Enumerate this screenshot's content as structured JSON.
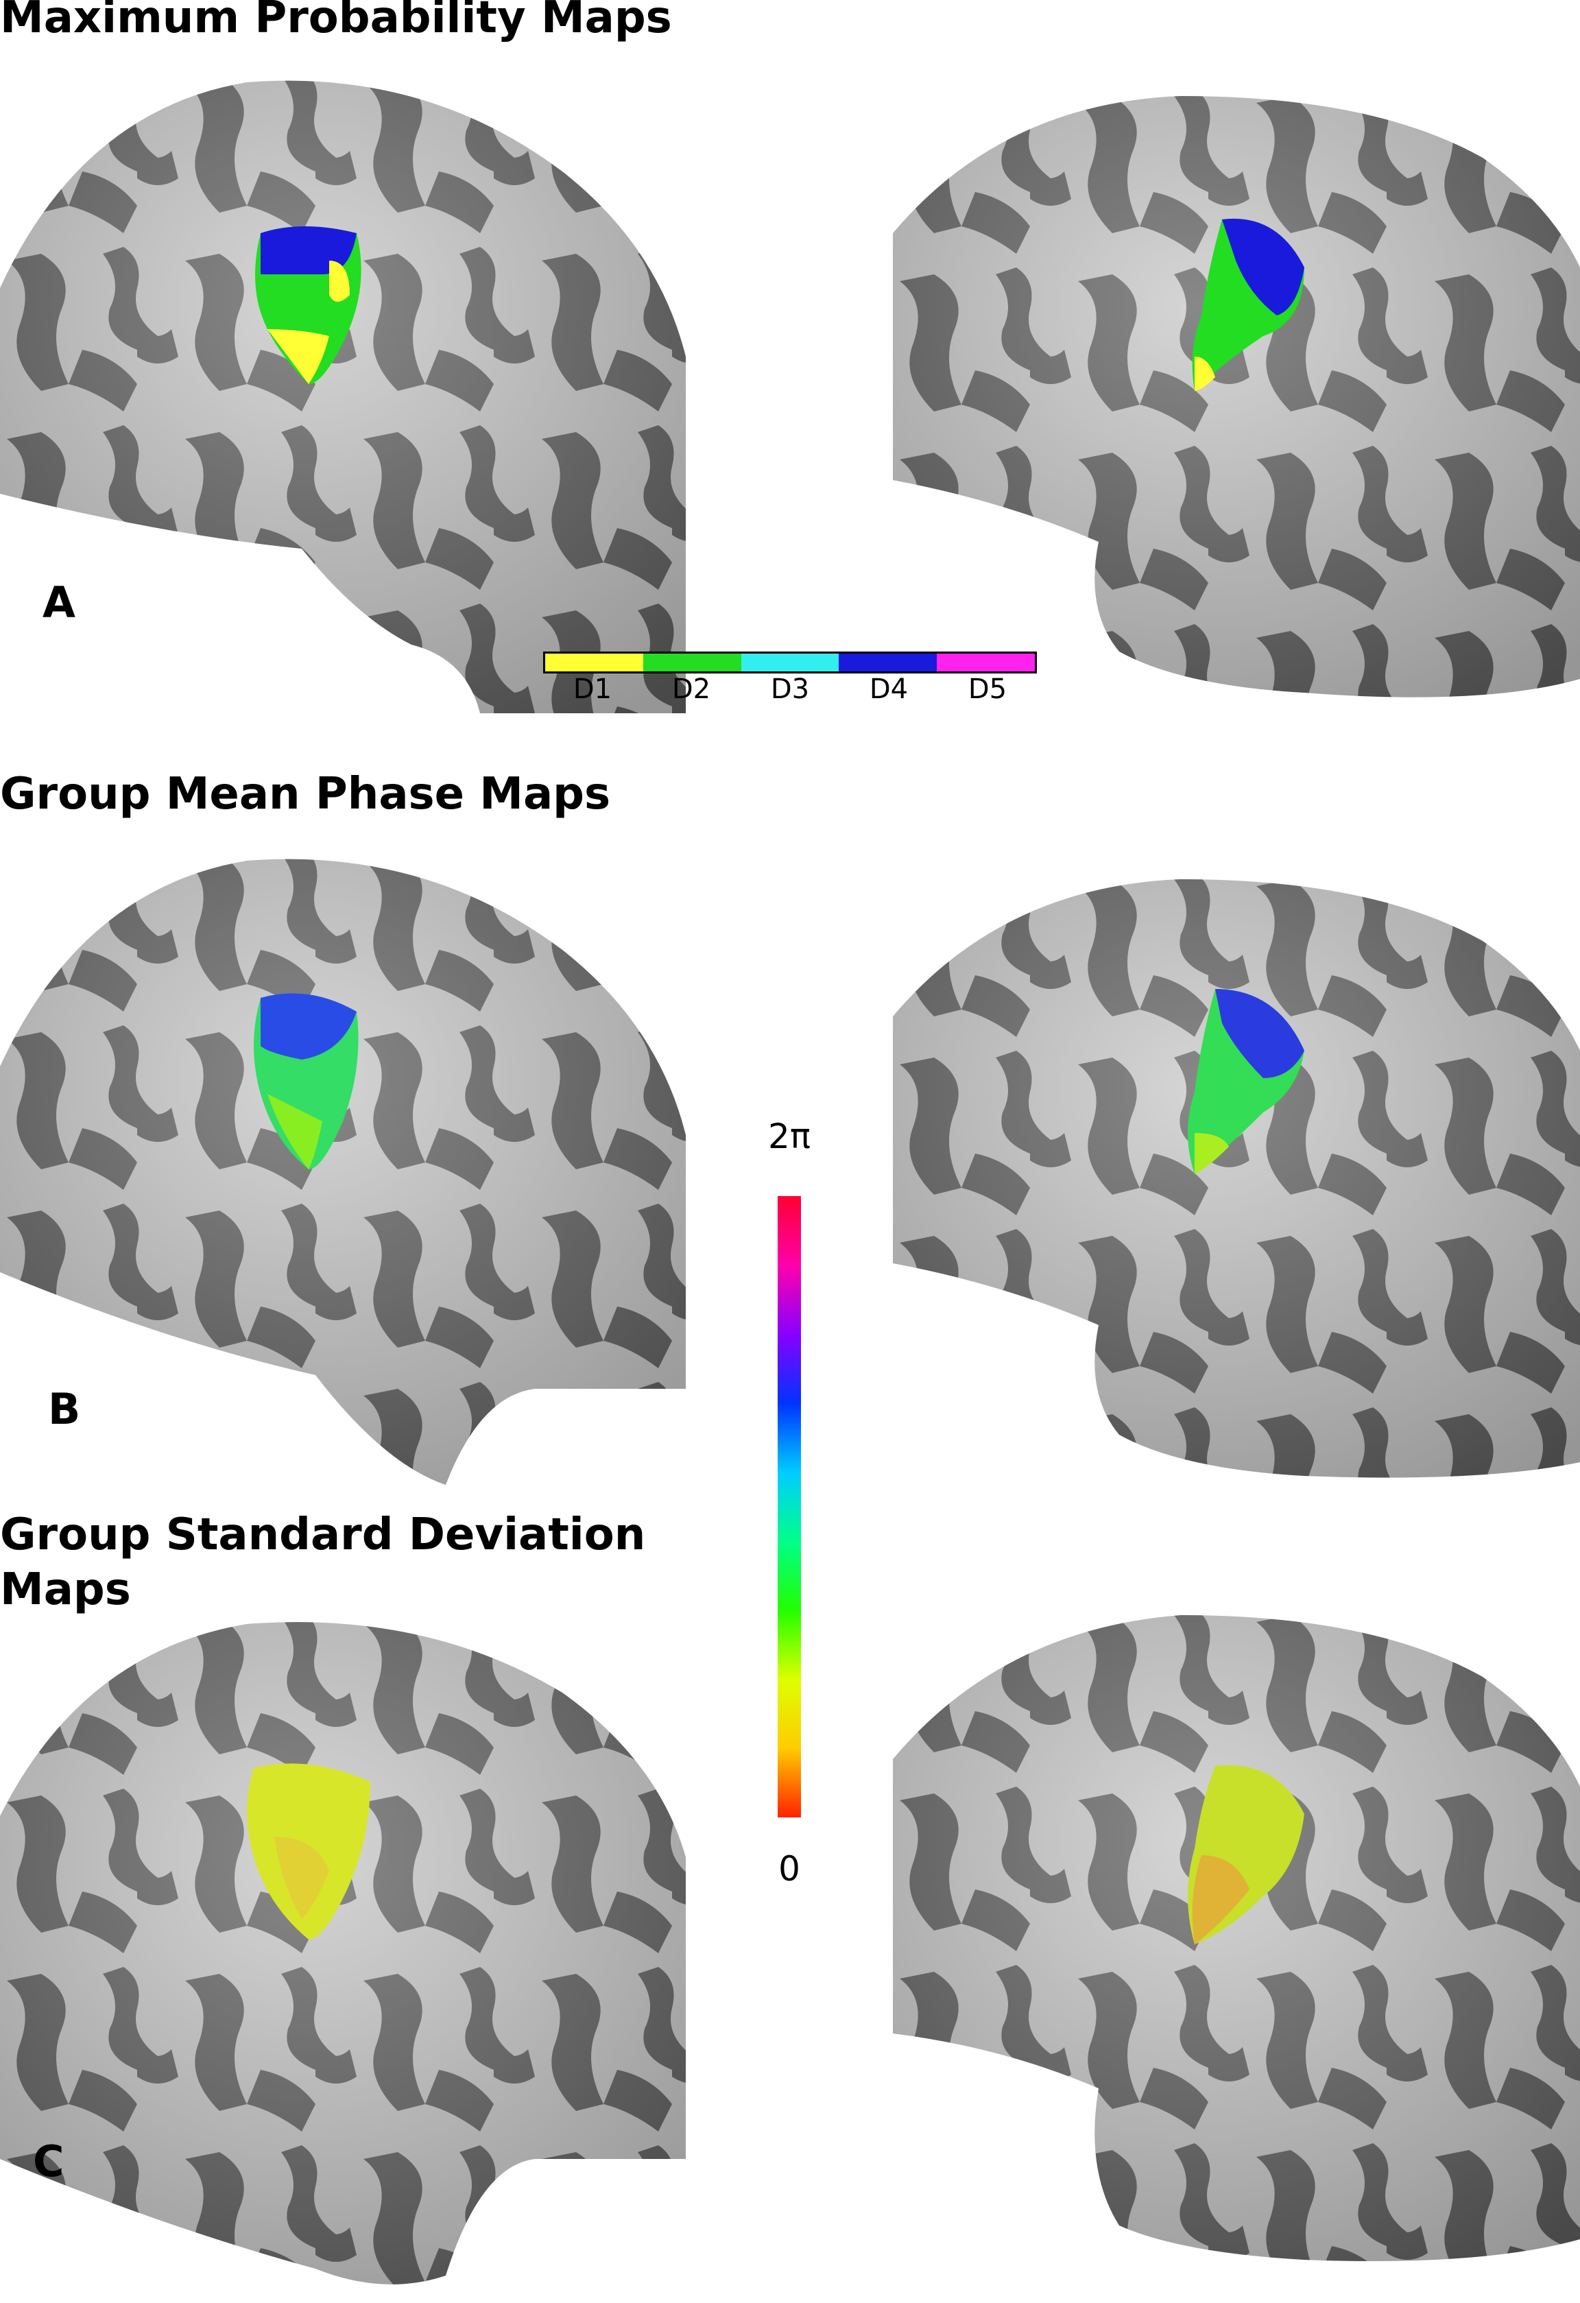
{
  "titles": {
    "maximum_probability": "Maximum Probability Maps",
    "group_mean_phase": "Group Mean Phase Maps",
    "group_sd_line1": "Group Standard Deviation",
    "group_sd_line2": "Maps"
  },
  "panels": {
    "a": "A",
    "b": "B",
    "c": "C"
  },
  "digit_legend": {
    "labels": [
      "D1",
      "D2",
      "D3",
      "D4",
      "D5"
    ],
    "colors": [
      "#ffff33",
      "#22dd22",
      "#33eeee",
      "#1a1adc",
      "#ff22ee"
    ]
  },
  "phase_colorbar": {
    "top_label": "2π",
    "bottom_label": "0",
    "gradient": [
      "#ff0033",
      "#ff00aa",
      "#8800ff",
      "#0033ff",
      "#00ccff",
      "#00ff88",
      "#22ff00",
      "#ddff00",
      "#ffcc00",
      "#ff2200"
    ]
  },
  "colors": {
    "brain_light": "#c9c9c9",
    "brain_dark": "#5f5f5f",
    "sd_patch": "#d8e62a"
  }
}
